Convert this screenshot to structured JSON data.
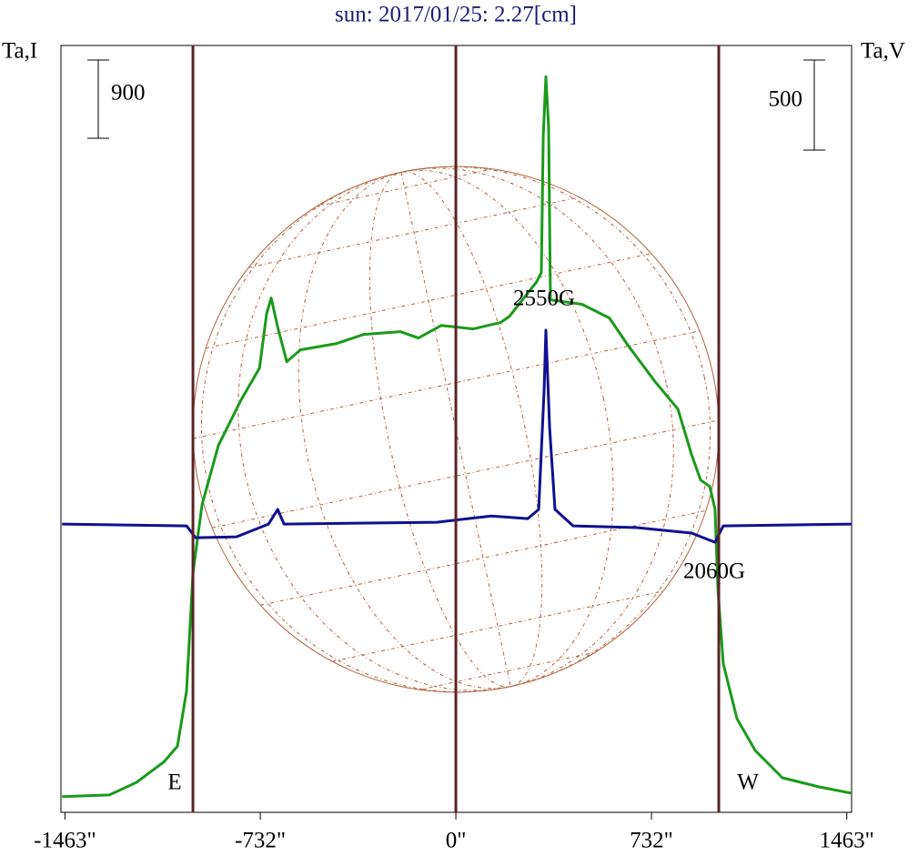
{
  "chart_data": {
    "type": "line",
    "title": "sun: 2017/01/25: 2.27[cm]",
    "ylabel": "Ta,I",
    "y2label": "Ta,V",
    "xlim": [
      -1478,
      1481
    ],
    "ylim": [
      -180,
      8640
    ],
    "y2lim": [
      -1600,
      2656
    ],
    "xticks": [
      {
        "value": -1463,
        "label": "-1463\""
      },
      {
        "value": -732,
        "label": "-732\""
      },
      {
        "value": 0,
        "label": "0\""
      },
      {
        "value": 732,
        "label": "732\""
      },
      {
        "value": 1463,
        "label": "1463\""
      }
    ],
    "limb_lines": [
      -984,
      0,
      984
    ],
    "limb_color": "#5a2424",
    "disk_color": "#b5603a",
    "scale_bars": [
      {
        "value": 900,
        "axis": "y"
      },
      {
        "value": 500,
        "axis": "y2"
      }
    ],
    "annotations": [
      "2550G",
      "2060G",
      "E",
      "W"
    ],
    "series": [
      {
        "name": "Ta,I",
        "color": "#1a9a1a",
        "axis": "y",
        "x": [
          -1474,
          -1297,
          -1195,
          -1093,
          -1042,
          -1008,
          -984,
          -950,
          -889,
          -804,
          -735,
          -708,
          -691,
          -667,
          -633,
          -582,
          -446,
          -344,
          -208,
          -140,
          -54,
          65,
          167,
          201,
          303,
          320,
          327,
          337,
          347,
          354,
          473,
          575,
          644,
          746,
          831,
          882,
          916,
          950,
          970,
          981,
          1001,
          1052,
          1120,
          1222,
          1359,
          1481
        ],
        "values": [
          0,
          20,
          165,
          400,
          580,
          1213,
          2574,
          3359,
          4039,
          4563,
          4929,
          5558,
          5736,
          5401,
          5003,
          5139,
          5212,
          5317,
          5348,
          5275,
          5421,
          5380,
          5453,
          5526,
          5924,
          6029,
          7599,
          8280,
          7704,
          5715,
          5662,
          5505,
          5191,
          4772,
          4458,
          3935,
          3642,
          3568,
          3307,
          2364,
          1527,
          898,
          532,
          218,
          113,
          40
        ]
      },
      {
        "name": "Ta,V",
        "color": "#101090",
        "axis": "y2",
        "x": [
          -1474,
          -1008,
          -974,
          -821,
          -701,
          -667,
          -643,
          -71,
          133,
          269,
          310,
          330,
          337,
          351,
          371,
          439,
          677,
          882,
          970,
          1001,
          1481
        ],
        "values": [
          0,
          -10,
          -76,
          -71,
          0,
          81,
          0,
          10,
          45,
          30,
          81,
          737,
          1076,
          535,
          81,
          -10,
          -20,
          -50,
          -101,
          -10,
          0
        ]
      }
    ]
  }
}
